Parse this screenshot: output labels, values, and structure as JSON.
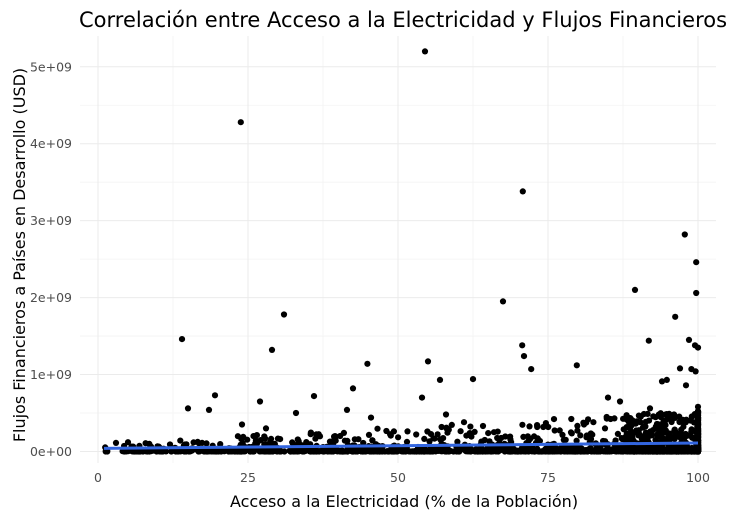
{
  "chart_data": {
    "type": "scatter",
    "title": "Correlación entre Acceso a la Electricidad y Flujos Financieros",
    "xlabel": "Acceso a la Electricidad (% de la Población)",
    "ylabel": "Flujos Financieros a Países en Desarrollo (USD)",
    "xlim": [
      -3,
      103
    ],
    "ylim": [
      -150000000,
      5400000000
    ],
    "x_ticks": [
      0,
      25,
      50,
      75,
      100
    ],
    "x_tick_labels": [
      "0",
      "25",
      "50",
      "75",
      "100"
    ],
    "y_ticks": [
      0,
      1000000000,
      2000000000,
      3000000000,
      4000000000,
      5000000000
    ],
    "y_tick_labels": [
      "0e+00",
      "1e+09",
      "2e+09",
      "3e+09",
      "4e+09",
      "5e+09"
    ],
    "grid": true,
    "point_color": "#000000",
    "trend_color": "#3366e0",
    "trendline": {
      "x": [
        1,
        100
      ],
      "y": [
        40000000,
        110000000
      ]
    },
    "points": {
      "x": [
        54.5,
        23.8,
        70.8,
        97.8,
        99.7,
        89.5,
        99.7,
        96.2,
        67.5,
        31.0,
        98.5,
        14.0,
        91.8,
        29.0,
        70.7,
        99.5,
        55.0,
        71.0,
        100,
        79.8,
        97.0,
        44.9,
        94.8,
        98.9,
        99.6,
        72.2,
        57.0,
        94.0,
        62.5,
        100,
        19.5,
        36.0,
        87.0,
        27.0,
        98.0,
        42.5,
        54.0,
        85.0,
        15.0,
        92.0,
        58.0,
        100,
        33.0,
        18.5,
        41.5,
        96.0,
        45.5,
        61.0,
        76.0,
        88.5,
        24.0,
        84.5,
        5.0,
        12.0,
        28.0,
        39.5,
        66.0,
        81.0,
        93.5,
        99.0
      ],
      "y": [
        5200000000,
        4280000000,
        3380000000,
        2820000000,
        2460000000,
        2100000000,
        2060000000,
        1750000000,
        1950000000,
        1780000000,
        1450000000,
        1460000000,
        1440000000,
        1320000000,
        1380000000,
        1380000000,
        1170000000,
        1240000000,
        1350000000,
        1120000000,
        1080000000,
        1140000000,
        930000000,
        1070000000,
        1040000000,
        1070000000,
        930000000,
        910000000,
        940000000,
        580000000,
        730000000,
        720000000,
        650000000,
        650000000,
        860000000,
        820000000,
        700000000,
        700000000,
        560000000,
        560000000,
        480000000,
        500000000,
        500000000,
        540000000,
        540000000,
        480000000,
        440000000,
        380000000,
        420000000,
        380000000,
        350000000,
        300000000,
        120000000,
        90000000,
        300000000,
        200000000,
        250000000,
        350000000,
        280000000,
        450000000
      ],
      "n_noise": 1850,
      "seed": 7
    }
  }
}
